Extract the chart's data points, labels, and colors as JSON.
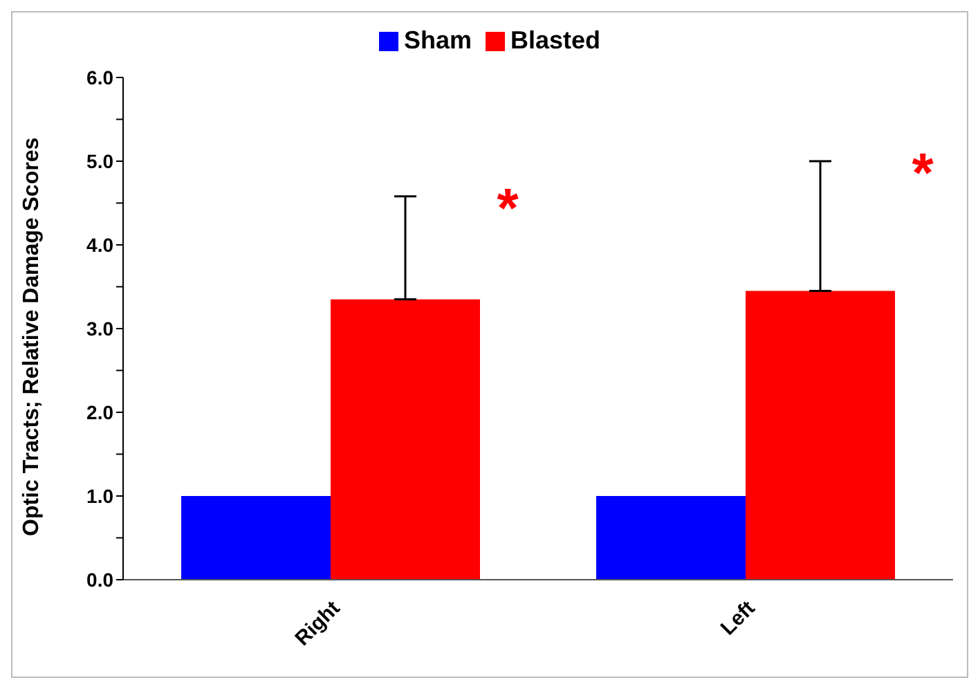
{
  "chart_data": {
    "type": "bar",
    "categories": [
      "Right",
      "Left"
    ],
    "series": [
      {
        "name": "Sham",
        "color": "#0000ff",
        "values": [
          1.0,
          1.0
        ]
      },
      {
        "name": "Blasted",
        "color": "#ff0000",
        "values": [
          3.35,
          3.45
        ],
        "errors": [
          [
            3.35,
            4.58
          ],
          [
            3.45,
            5.0
          ]
        ]
      }
    ],
    "ylabel": "Optic Tracts; Relative Damage Scores",
    "ylim": [
      0,
      6
    ],
    "yticks": [
      {
        "value": 0,
        "label": "0.0"
      },
      {
        "value": 0.5,
        "label": null
      },
      {
        "value": 1,
        "label": "1.0"
      },
      {
        "value": 1.5,
        "label": null
      },
      {
        "value": 2,
        "label": "2.0"
      },
      {
        "value": 2.5,
        "label": null
      },
      {
        "value": 3,
        "label": "3.0"
      },
      {
        "value": 3.5,
        "label": null
      },
      {
        "value": 4,
        "label": "4.0"
      },
      {
        "value": 4.5,
        "label": null
      },
      {
        "value": 5,
        "label": "5.0"
      },
      {
        "value": 5.5,
        "label": null
      },
      {
        "value": 6,
        "label": "6.0"
      }
    ],
    "annotations": [
      "*",
      "*"
    ],
    "legend": "top"
  }
}
